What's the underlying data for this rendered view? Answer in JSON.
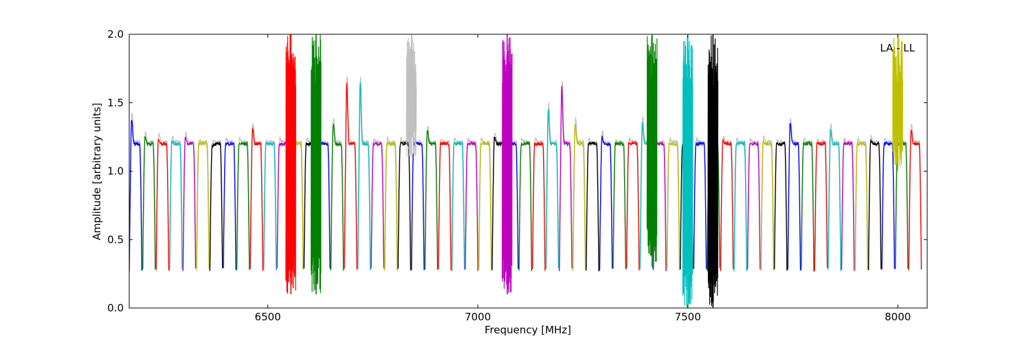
{
  "chart_data": {
    "type": "line",
    "title": "",
    "xlabel": "Frequency [MHz]",
    "ylabel": "Amplitude [arbitrary units]",
    "xlim": [
      6170,
      8070
    ],
    "ylim": [
      0.0,
      2.0
    ],
    "xticks": [
      6500,
      7000,
      7500,
      8000
    ],
    "xtick_labels": [
      "6500",
      "7000",
      "7500",
      "8000"
    ],
    "yticks": [
      0.0,
      0.5,
      1.0,
      1.5,
      2.0
    ],
    "ytick_labels": [
      "0.0",
      "0.5",
      "1.0",
      "1.5",
      "2.0"
    ],
    "grid": false,
    "annotation": "LA - LL",
    "annotation_position": "top-right",
    "channel_width_mhz": 32,
    "channel_count": 59,
    "first_channel_start_mhz": 6170,
    "channel_level_typical": 1.2,
    "channel_edge_level": 0.28,
    "colors": [
      "#0000ff",
      "#008000",
      "#ff0000",
      "#00bfbf",
      "#bf00bf",
      "#bfbf00",
      "#000000"
    ],
    "background_trace_color": "#c0c0c0",
    "channel_peaks": [
      1.38,
      1.25,
      1.24,
      1.22,
      1.25,
      1.2,
      1.18,
      1.2,
      1.2,
      1.31,
      1.2,
      1.2,
      1.2,
      1.2,
      1.2,
      1.35,
      1.65,
      1.65,
      1.2,
      1.2,
      1.2,
      1.2,
      1.3,
      1.2,
      1.2,
      1.2,
      1.2,
      1.25,
      1.2,
      1.2,
      1.2,
      1.45,
      1.62,
      1.35,
      1.2,
      1.25,
      1.2,
      1.2,
      1.35,
      1.2,
      1.2,
      1.2,
      1.2,
      1.2,
      1.22,
      1.2,
      1.2,
      1.22,
      1.2,
      1.35,
      1.2,
      1.2,
      1.3,
      1.2,
      1.2,
      1.22,
      1.2,
      1.2,
      1.3
    ],
    "rfi_features": [
      {
        "x": 6555,
        "y_low": 0.1,
        "y_high": 2.0,
        "color": "#ff0000"
      },
      {
        "x": 6615,
        "y_low": 0.1,
        "y_high": 2.0,
        "color": "#008000"
      },
      {
        "x": 6842,
        "y_low": 1.1,
        "y_high": 2.0,
        "color": "#c0c0c0"
      },
      {
        "x": 7070,
        "y_low": 0.1,
        "y_high": 2.0,
        "color": "#bf00bf"
      },
      {
        "x": 7415,
        "y_low": 0.3,
        "y_high": 2.0,
        "color": "#008000"
      },
      {
        "x": 7500,
        "y_low": 0.0,
        "y_high": 2.0,
        "color": "#00bfbf"
      },
      {
        "x": 7560,
        "y_low": 0.0,
        "y_high": 2.0,
        "color": "#000000"
      },
      {
        "x": 8000,
        "y_low": 1.0,
        "y_high": 2.0,
        "color": "#bfbf00"
      }
    ]
  }
}
